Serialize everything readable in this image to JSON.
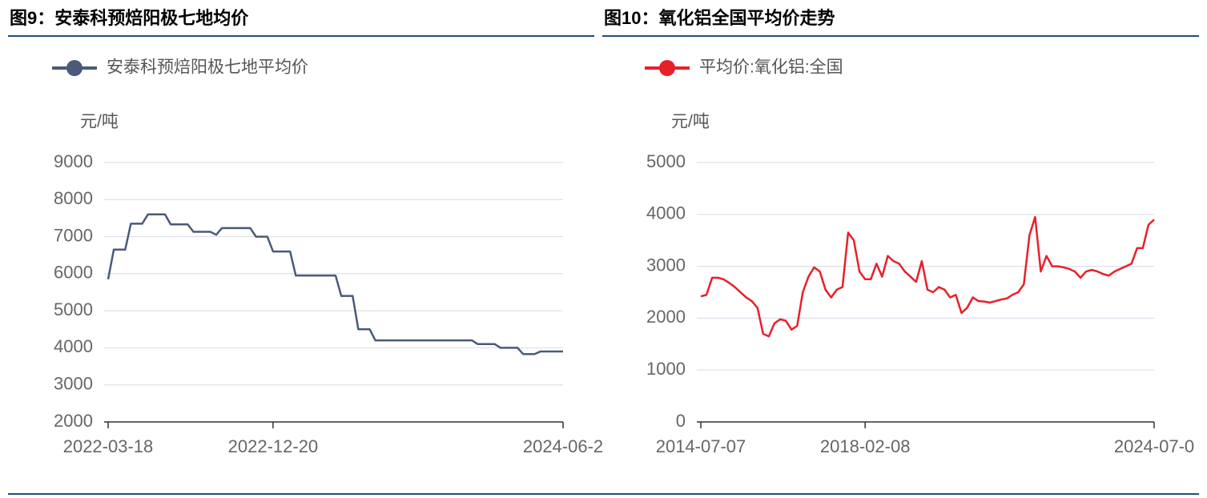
{
  "chart_data": [
    {
      "type": "line",
      "title": "图9：安泰科预焙阳极七地均价",
      "y_label": "元/吨",
      "categories": [
        "2022-03-18",
        null,
        null,
        null,
        null,
        null,
        null,
        null,
        null,
        null,
        null,
        null,
        null,
        null,
        null,
        null,
        null,
        null,
        null,
        null,
        null,
        null,
        null,
        null,
        null,
        null,
        null,
        null,
        null,
        "2022-12-20",
        null,
        null,
        null,
        null,
        null,
        null,
        null,
        null,
        null,
        null,
        null,
        null,
        null,
        null,
        null,
        null,
        null,
        null,
        null,
        null,
        null,
        null,
        null,
        null,
        null,
        null,
        null,
        null,
        null,
        null,
        null,
        null,
        null,
        null,
        null,
        null,
        null,
        null,
        null,
        null,
        null,
        null,
        null,
        null,
        null,
        null,
        null,
        null,
        null,
        null,
        "2024-06-2"
      ],
      "series": [
        {
          "name": "安泰科预焙阳极七地平均价",
          "color": "#4a5a78",
          "values": [
            5850,
            6650,
            6650,
            6650,
            7350,
            7350,
            7350,
            7600,
            7600,
            7600,
            7600,
            7330,
            7330,
            7330,
            7330,
            7130,
            7130,
            7130,
            7130,
            7050,
            7230,
            7230,
            7230,
            7230,
            7230,
            7230,
            7000,
            7000,
            7000,
            6600,
            6600,
            6600,
            6600,
            5950,
            5950,
            5950,
            5950,
            5950,
            5950,
            5950,
            5950,
            5400,
            5400,
            5400,
            4500,
            4500,
            4500,
            4200,
            4200,
            4200,
            4200,
            4200,
            4200,
            4200,
            4200,
            4200,
            4200,
            4200,
            4200,
            4200,
            4200,
            4200,
            4200,
            4200,
            4200,
            4100,
            4100,
            4100,
            4100,
            4000,
            4000,
            4000,
            4000,
            3830,
            3830,
            3830,
            3900,
            3900,
            3900,
            3900,
            3900
          ]
        }
      ],
      "ylim": [
        2000,
        9000
      ],
      "yticks": [
        2000,
        3000,
        4000,
        5000,
        6000,
        7000,
        8000,
        9000
      ],
      "grid": true
    },
    {
      "type": "line",
      "title": "图10：氧化铝全国平均价走势",
      "y_label": "元/吨",
      "categories": [
        "2014-07-07",
        null,
        null,
        null,
        null,
        null,
        null,
        null,
        null,
        null,
        null,
        null,
        null,
        null,
        null,
        null,
        null,
        null,
        null,
        null,
        null,
        null,
        null,
        null,
        null,
        null,
        null,
        null,
        null,
        "2018-02-08",
        null,
        null,
        null,
        null,
        null,
        null,
        null,
        null,
        null,
        null,
        null,
        null,
        null,
        null,
        null,
        null,
        null,
        null,
        null,
        null,
        null,
        null,
        null,
        null,
        null,
        null,
        null,
        null,
        null,
        null,
        null,
        null,
        null,
        null,
        null,
        null,
        null,
        null,
        null,
        null,
        null,
        null,
        null,
        null,
        null,
        null,
        null,
        null,
        null,
        null,
        "2024-07-0"
      ],
      "series": [
        {
          "name": "平均价:氧化铝:全国",
          "color": "#e8202a",
          "values": [
            2420,
            2450,
            2780,
            2780,
            2750,
            2680,
            2600,
            2500,
            2400,
            2330,
            2200,
            1700,
            1650,
            1900,
            1980,
            1950,
            1780,
            1850,
            2500,
            2800,
            2980,
            2900,
            2550,
            2400,
            2550,
            2600,
            3650,
            3500,
            2900,
            2750,
            2750,
            3050,
            2800,
            3200,
            3100,
            3050,
            2900,
            2800,
            2700,
            3100,
            2550,
            2500,
            2600,
            2550,
            2400,
            2450,
            2100,
            2200,
            2400,
            2330,
            2320,
            2300,
            2330,
            2360,
            2380,
            2450,
            2500,
            2650,
            3600,
            3950,
            2900,
            3200,
            3000,
            3000,
            2980,
            2950,
            2900,
            2780,
            2900,
            2930,
            2900,
            2850,
            2820,
            2900,
            2950,
            3000,
            3050,
            3350,
            3350,
            3800,
            3900
          ]
        }
      ],
      "ylim": [
        0,
        5000
      ],
      "yticks": [
        0,
        1000,
        2000,
        3000,
        4000,
        5000
      ],
      "grid": true
    }
  ]
}
